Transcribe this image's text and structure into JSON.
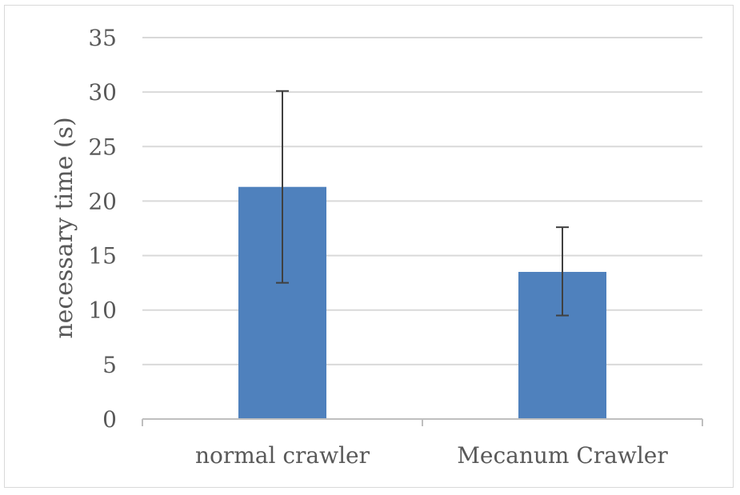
{
  "chart_data": {
    "type": "bar",
    "title": "",
    "xlabel": "",
    "ylabel": "necessary time (s)",
    "categories": [
      "normal crawler",
      "Mecanum Crawler"
    ],
    "values": [
      21.3,
      13.5
    ],
    "error_low": [
      12.5,
      9.5
    ],
    "error_high": [
      30.1,
      17.6
    ],
    "ylim": [
      0,
      35
    ],
    "yticks": [
      0,
      5,
      10,
      15,
      20,
      25,
      30,
      35
    ],
    "grid": true,
    "legend": "none",
    "colors": {
      "bar": "#4f81bd",
      "grid": "#d9d9d9",
      "axis": "#bfbfbf",
      "error": "#404040",
      "text": "#595959"
    }
  }
}
